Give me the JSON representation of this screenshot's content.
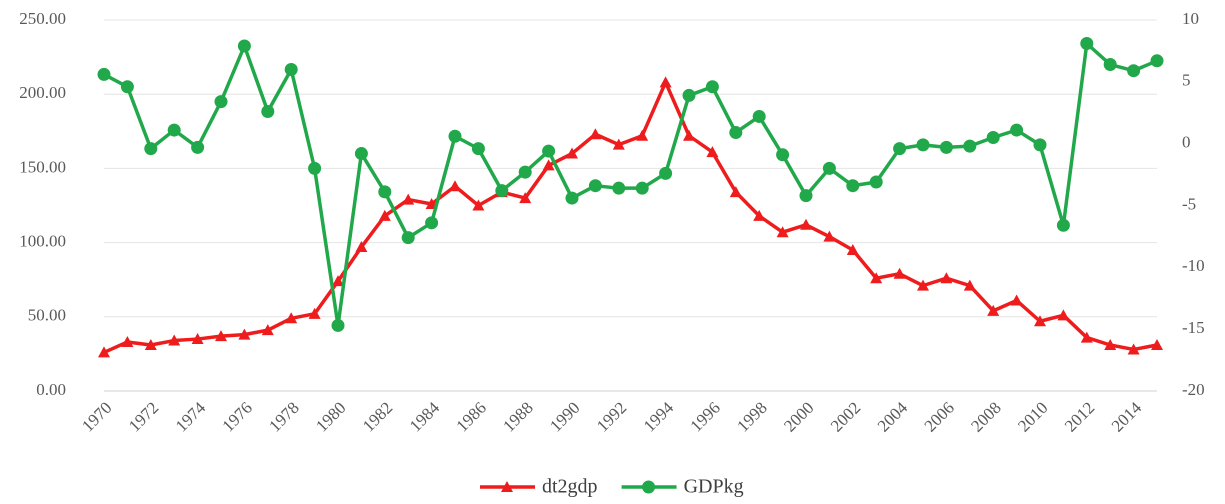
{
  "chart_data": {
    "type": "line",
    "x": [
      1970,
      1971,
      1972,
      1973,
      1974,
      1975,
      1976,
      1977,
      1978,
      1979,
      1980,
      1981,
      1982,
      1983,
      1984,
      1985,
      1986,
      1987,
      1988,
      1989,
      1990,
      1991,
      1992,
      1993,
      1994,
      1995,
      1996,
      1997,
      1998,
      1999,
      2000,
      2001,
      2002,
      2003,
      2004,
      2005,
      2006,
      2007,
      2008,
      2009,
      2010,
      2011,
      2012,
      2013,
      2014,
      2015
    ],
    "xlim": [
      1970,
      2015
    ],
    "xticks": [
      1970,
      1972,
      1974,
      1976,
      1978,
      1980,
      1982,
      1984,
      1986,
      1988,
      1990,
      1992,
      1994,
      1996,
      1998,
      2000,
      2002,
      2004,
      2006,
      2008,
      2010,
      2012,
      2014
    ],
    "ylim": [
      0,
      250
    ],
    "yticks": [
      {
        "value": 0,
        "label": "0.00"
      },
      {
        "value": 50,
        "label": "50.00"
      },
      {
        "value": 100,
        "label": "100.00"
      },
      {
        "value": 150,
        "label": "150.00"
      },
      {
        "value": 200,
        "label": "200.00"
      },
      {
        "value": 250,
        "label": "250.00"
      }
    ],
    "y2lim": [
      -20,
      10
    ],
    "y2ticks": [
      -20,
      -15,
      -10,
      -5,
      0,
      5,
      10
    ],
    "grid": true,
    "legend": "bottom",
    "series": [
      {
        "name": "dt2gdp",
        "color": "#ee1c1c",
        "marker": "triangle",
        "values": [
          26,
          33,
          31,
          34,
          35,
          37,
          38,
          41,
          49,
          52,
          74,
          97,
          118,
          129,
          126,
          138,
          125,
          134,
          130,
          152,
          160,
          173,
          166,
          172,
          208,
          172,
          161,
          134,
          118,
          107,
          112,
          104,
          95,
          76,
          79,
          71,
          76,
          71,
          54,
          61,
          47,
          51,
          36,
          31,
          28,
          31
        ]
      },
      {
        "name": "GDPkg",
        "color": "#21a84a",
        "marker": "circle",
        "axis": "y2",
        "values": [
          5.6,
          4.6,
          -0.4,
          1.1,
          -0.3,
          3.4,
          7.9,
          2.6,
          6.0,
          -2.0,
          -14.7,
          -0.8,
          -3.9,
          -7.6,
          -6.4,
          0.6,
          -0.4,
          -3.8,
          -2.3,
          -0.6,
          -4.4,
          -3.4,
          -3.6,
          -3.6,
          -2.4,
          3.9,
          4.6,
          0.9,
          2.2,
          -0.9,
          -4.2,
          -2.0,
          -3.4,
          -3.1,
          -0.4,
          -0.1,
          -0.3,
          -0.2,
          0.5,
          1.1,
          -0.1,
          -6.6,
          8.1,
          6.4,
          5.9,
          6.7
        ]
      }
    ]
  }
}
